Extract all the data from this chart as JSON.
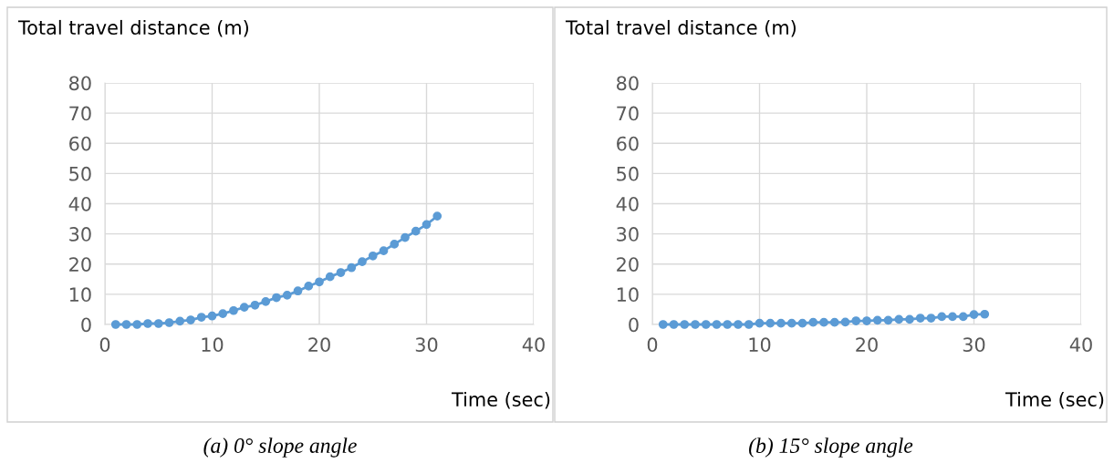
{
  "chart_data": [
    {
      "type": "line",
      "ylabel": "Total travel distance (m)",
      "xlabel": "Time (sec)",
      "annotations": [
        "(a) 0° slope angle"
      ],
      "x": [
        1,
        2,
        3,
        4,
        5,
        6,
        7,
        8,
        9,
        10,
        11,
        12,
        13,
        14,
        15,
        16,
        17,
        18,
        19,
        20,
        21,
        22,
        23,
        24,
        25,
        26,
        27,
        28,
        29,
        30,
        31
      ],
      "series": [
        {
          "color": "#5b9bd5",
          "values": [
            0,
            0,
            0,
            0.3,
            0.3,
            0.6,
            1.1,
            1.5,
            2.4,
            2.8,
            3.6,
            4.6,
            5.7,
            6.4,
            7.6,
            8.9,
            9.7,
            11.1,
            12.7,
            14.1,
            15.8,
            17.2,
            18.8,
            20.8,
            22.7,
            24.4,
            26.6,
            28.8,
            30.9,
            33.1,
            35.9
          ]
        }
      ],
      "xlim": [
        0,
        40
      ],
      "xticks": [
        0,
        10,
        20,
        30,
        40
      ],
      "ylim": [
        0,
        80
      ],
      "yticks": [
        0,
        10,
        20,
        30,
        40,
        50,
        60,
        70,
        80
      ],
      "grid": true,
      "marker": "circle",
      "line_style": "solid"
    },
    {
      "type": "line",
      "ylabel": "Total travel distance (m)",
      "xlabel": "Time (sec)",
      "annotations": [
        "(b) 15° slope angle"
      ],
      "x": [
        1,
        2,
        3,
        4,
        5,
        6,
        7,
        8,
        9,
        10,
        11,
        12,
        13,
        14,
        15,
        16,
        17,
        18,
        19,
        20,
        21,
        22,
        23,
        24,
        25,
        26,
        27,
        28,
        29,
        30,
        31
      ],
      "series": [
        {
          "color": "#5b9bd5",
          "values": [
            0,
            0,
            0,
            0,
            0,
            0,
            0,
            0,
            0,
            0.4,
            0.4,
            0.4,
            0.4,
            0.4,
            0.7,
            0.7,
            0.7,
            0.8,
            1.2,
            1.2,
            1.4,
            1.4,
            1.7,
            1.7,
            2.1,
            2.1,
            2.6,
            2.6,
            2.6,
            3.3,
            3.4
          ]
        }
      ],
      "xlim": [
        0,
        40
      ],
      "xticks": [
        0,
        10,
        20,
        30,
        40
      ],
      "ylim": [
        0,
        80
      ],
      "yticks": [
        0,
        10,
        20,
        30,
        40,
        50,
        60,
        70,
        80
      ],
      "grid": true,
      "marker": "circle",
      "line_style": "solid"
    }
  ]
}
